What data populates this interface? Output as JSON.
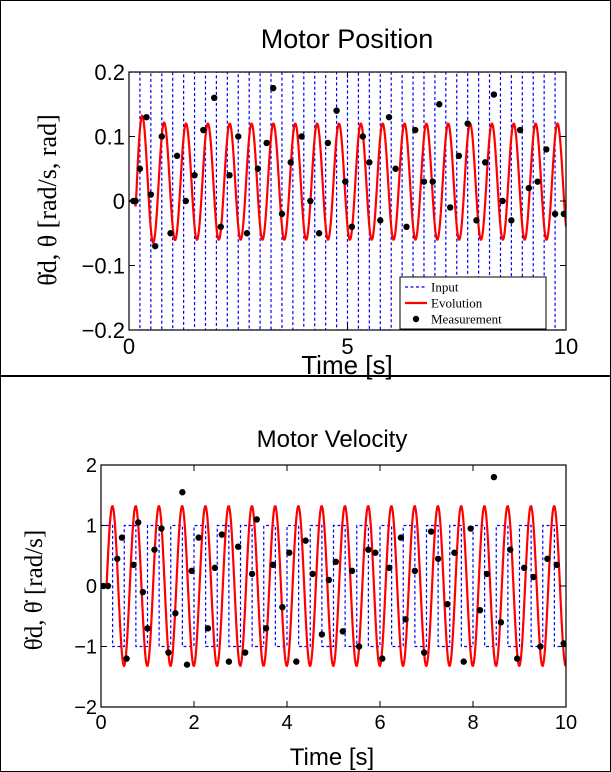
{
  "chart_data": [
    {
      "type": "line",
      "title": "Motor Position",
      "xlabel": "Time [s]",
      "ylabel": "θ̇d, θ [rad/s, rad]",
      "xlim": [
        0,
        10
      ],
      "ylim": [
        -0.2,
        0.2
      ],
      "xticks": [
        "0",
        "5",
        "10"
      ],
      "yticks": [
        "0.2",
        "0.1",
        "0",
        "−0.1",
        "−0.2"
      ],
      "grid": false,
      "legend_position": "bottom-right",
      "series": [
        {
          "name": "Input",
          "style": "dashed",
          "color": "#0000ff",
          "description": "square wave alternating between +0.2 and −0.2 (switching about every 0.25 s)",
          "period": 0.5,
          "low": -0.2,
          "high": 0.2
        },
        {
          "name": "Evolution",
          "style": "solid",
          "color": "#ff0000",
          "x": [
            0.0,
            0.1,
            0.2,
            0.3,
            0.4,
            0.5,
            0.6,
            0.7,
            0.8,
            0.9,
            1.0,
            1.25,
            1.5,
            1.75,
            2.0,
            2.5,
            3.0,
            4.0,
            5.0,
            6.0,
            7.0,
            8.0,
            9.0,
            10.0
          ],
          "y": [
            0.0,
            0.0,
            0.09,
            0.165,
            0.1,
            -0.03,
            -0.065,
            0.02,
            0.11,
            0.05,
            -0.05,
            0.11,
            -0.05,
            0.11,
            -0.05,
            0.12,
            -0.06,
            0.12,
            -0.06,
            0.12,
            -0.06,
            0.12,
            -0.06,
            0.11
          ],
          "oscillation_period": 0.5,
          "steady_max": 0.12,
          "steady_min": -0.06
        },
        {
          "name": "Measurement",
          "style": "markers",
          "color": "#000000",
          "x": [
            0.1,
            0.15,
            0.25,
            0.4,
            0.5,
            0.6,
            0.75,
            0.95,
            1.1,
            1.3,
            1.5,
            1.7,
            1.95,
            2.1,
            2.3,
            2.5,
            2.7,
            2.95,
            3.15,
            3.3,
            3.5,
            3.7,
            3.95,
            4.15,
            4.35,
            4.55,
            4.75,
            4.95,
            5.1,
            5.35,
            5.5,
            5.75,
            5.95,
            6.1,
            6.35,
            6.55,
            6.75,
            6.95,
            7.1,
            7.35,
            7.55,
            7.75,
            7.95,
            8.15,
            8.35,
            8.55,
            8.75,
            8.95,
            9.15,
            9.35,
            9.55,
            9.75,
            9.95
          ],
          "y": [
            0.0,
            0.0,
            0.05,
            0.13,
            0.01,
            -0.07,
            0.1,
            -0.05,
            0.07,
            0.0,
            0.04,
            0.11,
            0.16,
            -0.04,
            0.04,
            0.1,
            -0.05,
            0.05,
            0.09,
            0.175,
            -0.02,
            0.06,
            0.1,
            0.0,
            -0.05,
            0.09,
            0.14,
            0.03,
            -0.04,
            0.1,
            0.06,
            -0.03,
            0.13,
            0.05,
            -0.04,
            0.11,
            0.03,
            0.03,
            0.15,
            -0.01,
            0.07,
            0.12,
            -0.03,
            0.06,
            0.165,
            0.0,
            -0.03,
            0.11,
            0.02,
            0.03,
            0.08,
            -0.02,
            -0.02
          ]
        }
      ]
    },
    {
      "type": "line",
      "title": "Motor Velocity",
      "xlabel": "Time [s]",
      "ylabel": "θ̇d, θ̇ [rad/s]",
      "xlim": [
        0,
        10
      ],
      "ylim": [
        -2,
        2
      ],
      "xticks": [
        "0",
        "2",
        "4",
        "6",
        "8",
        "10"
      ],
      "yticks": [
        "2",
        "1",
        "0",
        "−1",
        "−2"
      ],
      "grid": false,
      "series": [
        {
          "name": "Input",
          "style": "dashed",
          "color": "#0000ff",
          "description": "square wave alternating between +1 and −1",
          "period": 0.5,
          "low": -1,
          "high": 1
        },
        {
          "name": "Evolution",
          "style": "solid",
          "color": "#ff0000",
          "oscillation_period": 0.5,
          "steady_max": 1.32,
          "steady_min": -1.32
        },
        {
          "name": "Measurement",
          "style": "markers",
          "color": "#000000",
          "x": [
            0.05,
            0.15,
            0.35,
            0.45,
            0.55,
            0.7,
            0.8,
            0.9,
            1.0,
            1.15,
            1.3,
            1.45,
            1.6,
            1.75,
            1.85,
            1.95,
            2.1,
            2.3,
            2.45,
            2.6,
            2.75,
            2.95,
            3.1,
            3.25,
            3.35,
            3.55,
            3.7,
            3.9,
            4.05,
            4.2,
            4.4,
            4.55,
            4.75,
            4.9,
            5.05,
            5.2,
            5.4,
            5.55,
            5.75,
            5.9,
            6.05,
            6.2,
            6.45,
            6.55,
            6.75,
            6.95,
            7.1,
            7.25,
            7.45,
            7.6,
            7.8,
            7.95,
            8.15,
            8.3,
            8.45,
            8.6,
            8.8,
            8.95,
            9.1,
            9.3,
            9.45,
            9.6,
            9.8,
            9.95
          ],
          "y": [
            0.0,
            0.0,
            0.45,
            0.8,
            -1.2,
            0.35,
            1.05,
            -0.1,
            -0.7,
            0.6,
            0.95,
            -1.1,
            -0.45,
            1.55,
            -1.3,
            0.25,
            0.8,
            -0.7,
            0.3,
            0.85,
            -1.25,
            0.65,
            -1.1,
            0.2,
            1.1,
            -0.7,
            0.35,
            -0.35,
            0.55,
            -1.25,
            0.75,
            0.2,
            -0.8,
            0.1,
            0.4,
            -0.75,
            0.25,
            -1.0,
            0.6,
            0.55,
            -1.2,
            0.3,
            0.8,
            -0.55,
            0.25,
            -1.1,
            0.9,
            0.45,
            -0.3,
            0.55,
            -1.25,
            0.95,
            -0.4,
            0.2,
            1.8,
            -0.6,
            0.6,
            -1.2,
            0.3,
            0.15,
            -1.0,
            0.45,
            0.35,
            -0.95
          ]
        }
      ]
    }
  ]
}
